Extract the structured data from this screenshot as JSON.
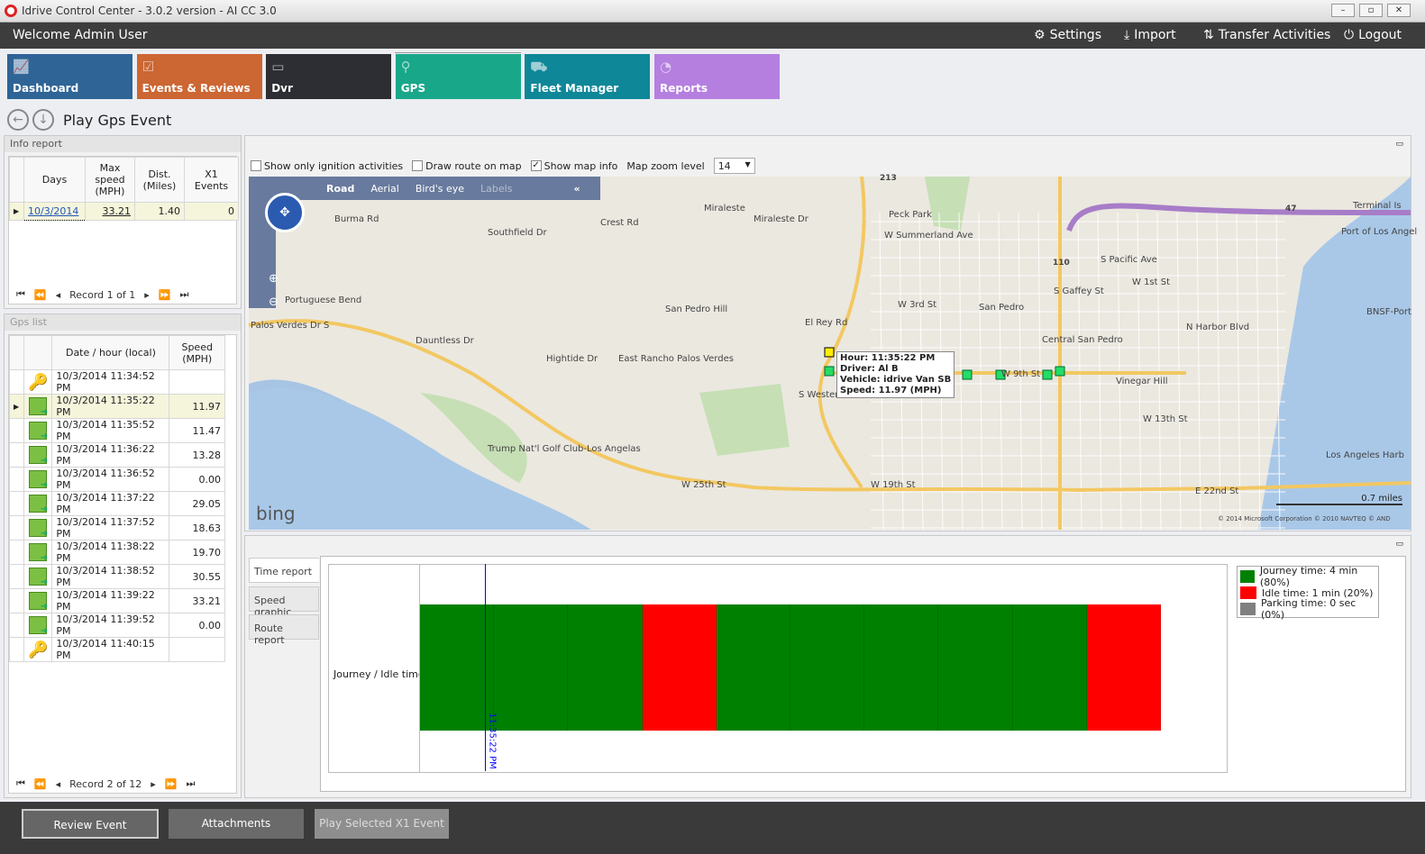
{
  "window": {
    "title": "Idrive Control Center - 3.0.2 version - AI CC 3.0",
    "controls": [
      "–",
      "▫",
      "✕"
    ]
  },
  "topbar": {
    "welcome": "Welcome Admin User",
    "settings": "Settings",
    "import": "Import",
    "transfer": "Transfer Activities",
    "logout": "Logout"
  },
  "tiles": [
    {
      "label": "Dashboard",
      "color": "#2f6497",
      "icon": "chart-icon"
    },
    {
      "label": "Events & Reviews",
      "color": "#cc6633",
      "icon": "clipboard-icon"
    },
    {
      "label": "Dvr",
      "color": "#2c2e33",
      "icon": "dvr-icon"
    },
    {
      "label": "GPS",
      "color": "#19a78a",
      "icon": "map-pin-icon",
      "active": true
    },
    {
      "label": "Fleet Manager",
      "color": "#0e8798",
      "icon": "vehicles-icon"
    },
    {
      "label": "Reports",
      "color": "#b57fe0",
      "icon": "pie-chart-icon"
    }
  ],
  "page_title": "Play Gps Event",
  "info_report": {
    "title": "Info report",
    "columns": [
      "Days",
      "Max speed (MPH)",
      "Dist. (Miles)",
      "X1 Events"
    ],
    "rows": [
      {
        "day": "10/3/2014",
        "max_speed": "33.21",
        "dist": "1.40",
        "x1": "0"
      }
    ],
    "record": "Record 1 of 1"
  },
  "gps_list": {
    "title": "Gps list",
    "columns": [
      "Date / hour (local)",
      "Speed (MPH)"
    ],
    "rows": [
      {
        "time": "10/3/2014 11:34:52 PM",
        "speed": "",
        "icon": "key-start-icon"
      },
      {
        "time": "10/3/2014 11:35:22 PM",
        "speed": "11.97",
        "icon": "gps-point-icon",
        "selected": true
      },
      {
        "time": "10/3/2014 11:35:52 PM",
        "speed": "11.47",
        "icon": "gps-point-icon"
      },
      {
        "time": "10/3/2014 11:36:22 PM",
        "speed": "13.28",
        "icon": "gps-point-icon"
      },
      {
        "time": "10/3/2014 11:36:52 PM",
        "speed": "0.00",
        "icon": "gps-point-icon"
      },
      {
        "time": "10/3/2014 11:37:22 PM",
        "speed": "29.05",
        "icon": "gps-point-icon"
      },
      {
        "time": "10/3/2014 11:37:52 PM",
        "speed": "18.63",
        "icon": "gps-point-icon"
      },
      {
        "time": "10/3/2014 11:38:22 PM",
        "speed": "19.70",
        "icon": "gps-point-icon"
      },
      {
        "time": "10/3/2014 11:38:52 PM",
        "speed": "30.55",
        "icon": "gps-point-icon"
      },
      {
        "time": "10/3/2014 11:39:22 PM",
        "speed": "33.21",
        "icon": "gps-point-icon"
      },
      {
        "time": "10/3/2014 11:39:52 PM",
        "speed": "0.00",
        "icon": "gps-point-icon"
      },
      {
        "time": "10/3/2014 11:40:15 PM",
        "speed": "",
        "icon": "key-stop-icon"
      }
    ],
    "record": "Record 2 of 12"
  },
  "map_options": {
    "ignition": "Show only ignition activities",
    "ignition_checked": false,
    "route": "Draw route on map",
    "route_checked": false,
    "info": "Show map info",
    "info_checked": true,
    "zoom_label": "Map zoom level",
    "zoom_value": "14"
  },
  "map": {
    "modes": [
      "Road",
      "Aerial",
      "Bird's eye",
      "Labels"
    ],
    "collapse": "«",
    "brand": "bing",
    "scale": "0.7 miles",
    "copyright": "© 2014 Microsoft Corporation   © 2010 NAVTEQ   © AND",
    "labels": [
      "Miraleste",
      "Peck Park",
      "W Summerland Ave",
      "Crest Rd",
      "Portuguese Bend",
      "Palos Verdes Dr S",
      "San Pedro Hill",
      "East Rancho Palos Verdes",
      "Trump Nat'l Golf Club-Los Angelas",
      "W 25th St",
      "W 19th St",
      "San Pedro",
      "Central San Pedro",
      "Vinegar Hill",
      "W 13th St",
      "W 1st St",
      "Los Angeles Harb",
      "Port of Los Angel",
      "Terminal Is",
      "BNSF-Port",
      "E 22nd St",
      "S Western Ave",
      "S Gaffey St",
      "N Harbor Blvd",
      "Miraleste Dr",
      "Hightide Dr",
      "Dauntless Dr",
      "Burma Rd",
      "Southfield Dr",
      "W 9th St",
      "S Pacific Ave",
      "W 3rd St",
      "El Rey Rd"
    ],
    "shields": [
      "47",
      "110",
      "213"
    ],
    "tooltip": {
      "hour": "Hour: 11:35:22 PM",
      "driver": "Driver: Al B",
      "vehicle": "Vehicle: idrive Van SB",
      "speed": "Speed: 11.97 (MPH)"
    }
  },
  "report_tabs": [
    "Time report",
    "Speed graphic",
    "Route report"
  ],
  "chart_data": {
    "type": "bar",
    "ylabel": "Journey / Idle time",
    "categories": [
      "Journey / Idle time"
    ],
    "segments": [
      "journey",
      "journey",
      "journey",
      "idle",
      "journey",
      "journey",
      "journey",
      "journey",
      "journey",
      "idle"
    ],
    "cursor_label": "11:35:22 PM",
    "cursor_index": 0.88,
    "legend": [
      {
        "label": "Journey time: 4 min (80%)",
        "color": "#008000"
      },
      {
        "label": "Idle time: 1 min (20%)",
        "color": "#ff0000"
      },
      {
        "label": "Parking time: 0 sec (0%)",
        "color": "#808080"
      }
    ]
  },
  "footer": {
    "review": "Review Event",
    "attachments": "Attachments",
    "play": "Play Selected X1 Event"
  }
}
